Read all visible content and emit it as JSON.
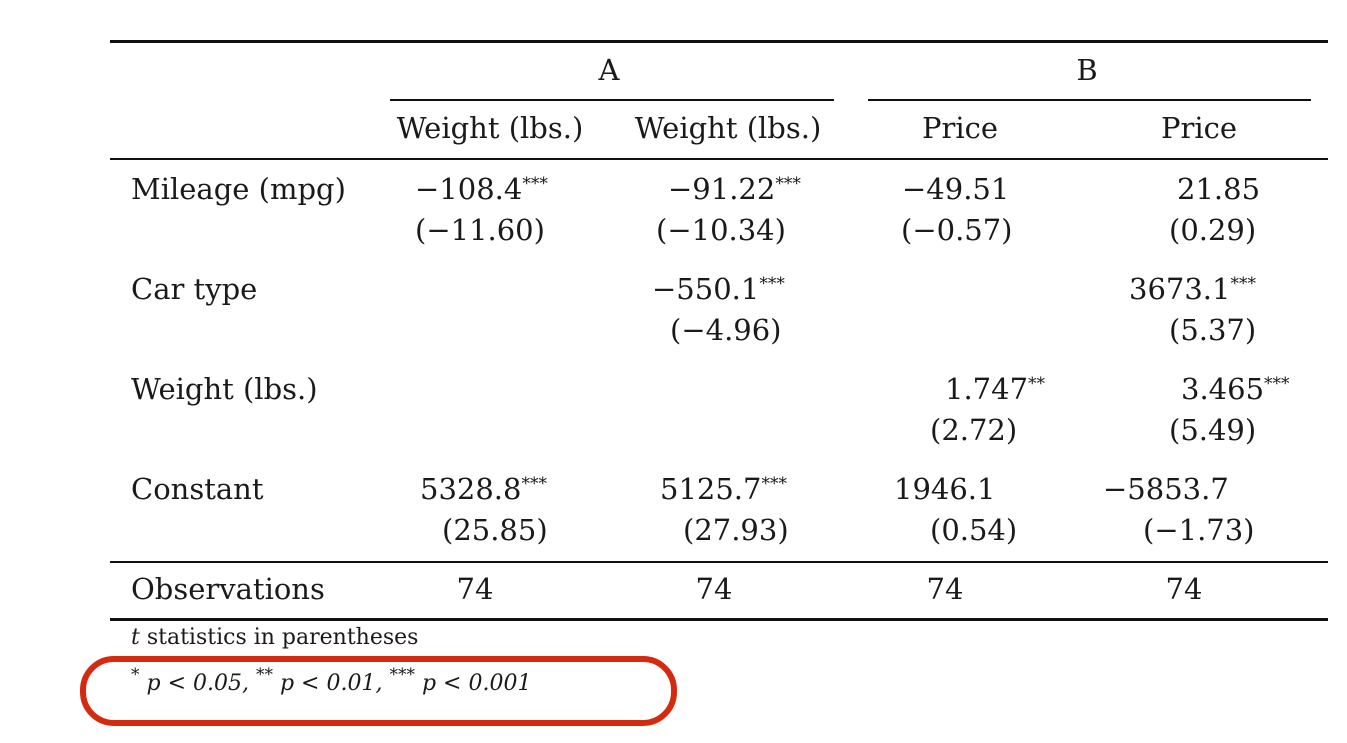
{
  "table": {
    "group_a": "A",
    "group_b": "B",
    "column_headers": [
      "Weight (lbs.)",
      "Weight (lbs.)",
      "Price",
      "Price"
    ],
    "rows": [
      {
        "label": "Mileage (mpg)",
        "cells": [
          {
            "coef": "−108.4",
            "stars": "***",
            "stat": "(−11.60)"
          },
          {
            "coef": "−91.22",
            "stars": "***",
            "stat": "(−10.34)"
          },
          {
            "coef": "−49.51",
            "stars": "",
            "stat": "(−0.57)"
          },
          {
            "coef": "21.85",
            "stars": "",
            "stat": "(0.29)"
          }
        ]
      },
      {
        "label": "Car type",
        "cells": [
          {
            "coef": "",
            "stars": "",
            "stat": ""
          },
          {
            "coef": "−550.1",
            "stars": "***",
            "stat": "(−4.96)"
          },
          {
            "coef": "",
            "stars": "",
            "stat": ""
          },
          {
            "coef": "3673.1",
            "stars": "***",
            "stat": "(5.37)"
          }
        ]
      },
      {
        "label": "Weight (lbs.)",
        "cells": [
          {
            "coef": "",
            "stars": "",
            "stat": ""
          },
          {
            "coef": "",
            "stars": "",
            "stat": ""
          },
          {
            "coef": "1.747",
            "stars": "**",
            "stat": "(2.72)"
          },
          {
            "coef": "3.465",
            "stars": "***",
            "stat": "(5.49)"
          }
        ]
      },
      {
        "label": "Constant",
        "cells": [
          {
            "coef": "5328.8",
            "stars": "***",
            "stat": "(25.85)"
          },
          {
            "coef": "5125.7",
            "stars": "***",
            "stat": "(27.93)"
          },
          {
            "coef": "1946.1",
            "stars": "",
            "stat": "(0.54)"
          },
          {
            "coef": "−5853.7",
            "stars": "",
            "stat": "(−1.73)"
          }
        ]
      }
    ],
    "observations_label": "Observations",
    "observations": [
      "74",
      "74",
      "74",
      "74"
    ]
  },
  "notes": {
    "t_symbol": "t",
    "t_text": " statistics in parentheses",
    "sig_1_stars": "*",
    "sig_1_text": "p < 0.05,",
    "sig_2_stars": "**",
    "sig_2_text": "p < 0.01,",
    "sig_3_stars": "***",
    "sig_3_text": "p < 0.001"
  },
  "annotation": {
    "highlight_color": "#d42a0f"
  }
}
